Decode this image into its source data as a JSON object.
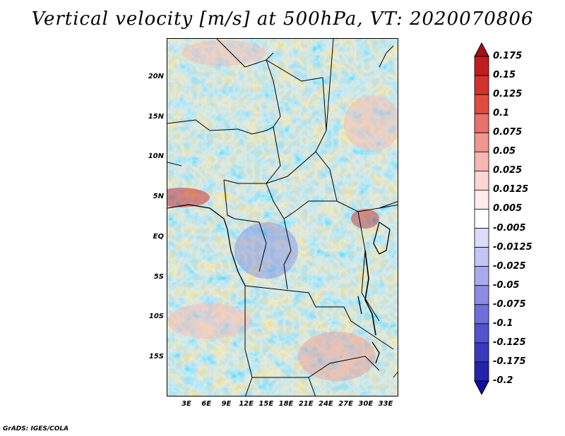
{
  "title": "Vertical velocity [m/s] at 500hPa, VT: 2020070806",
  "map": {
    "lat_ticks": [
      "20N",
      "15N",
      "10N",
      "5N",
      "EQ",
      "5S",
      "10S",
      "15S"
    ],
    "lon_ticks": [
      "3E",
      "6E",
      "9E",
      "12E",
      "15E",
      "18E",
      "21E",
      "24E",
      "27E",
      "30E",
      "33E"
    ],
    "field": "vertical velocity at 500hPa",
    "units": "m/s"
  },
  "colorbar": {
    "levels": [
      "0.175",
      "0.15",
      "0.125",
      "0.1",
      "0.075",
      "0.05",
      "0.025",
      "0.0125",
      "0.005",
      "-0.005",
      "-0.0125",
      "-0.025",
      "-0.05",
      "-0.075",
      "-0.1",
      "-0.125",
      "-0.175",
      "-0.2"
    ],
    "colors": [
      "#a50f15",
      "#be1e22",
      "#d0332d",
      "#e04c42",
      "#e8726a",
      "#f09690",
      "#f6b6b2",
      "#fbd6d3",
      "#fdeceb",
      "#ffffff",
      "#dcdcfa",
      "#c4c4f5",
      "#a9a9ef",
      "#8c8ce6",
      "#6f6fdb",
      "#5353cd",
      "#3a3abe",
      "#2323ae",
      "#1010a0"
    ]
  },
  "credit": "GrADS: IGES/COLA"
}
